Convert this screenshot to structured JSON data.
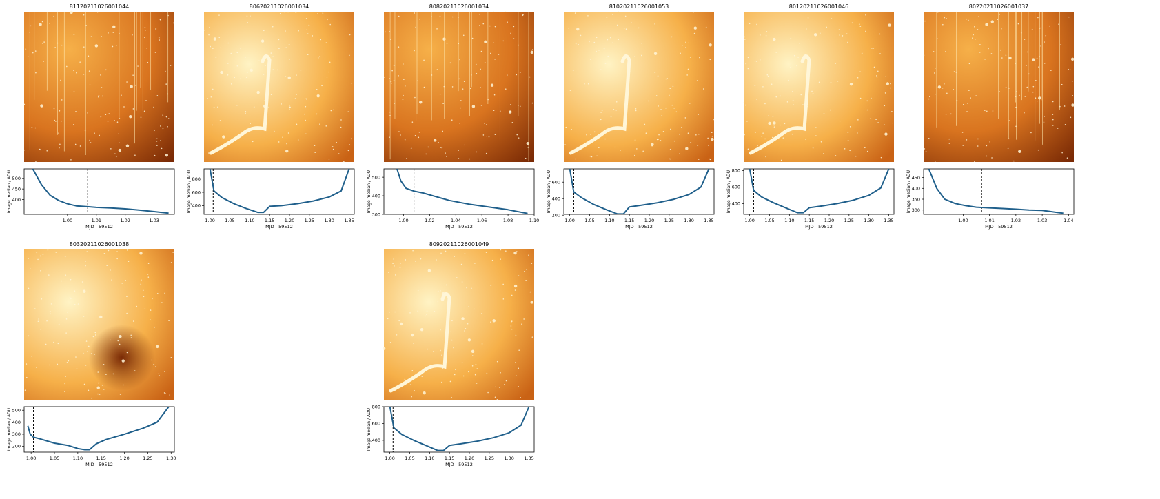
{
  "colors": {
    "line": "#1f5f8b",
    "axis": "#000000",
    "marker": "#000000",
    "image_bright": "#fff3c4",
    "image_mid": "#f6b049",
    "image_dark": "#7a2a05"
  },
  "shared": {
    "xlabel": "MJD - 59512",
    "ylabel": "Image median / ADU"
  },
  "chart_data": [
    {
      "type": "line",
      "title": "81120211026001044",
      "image_style": "stripes",
      "xlim": [
        0.985,
        1.037
      ],
      "ylim": [
        330,
        545
      ],
      "xticks": [
        1.0,
        1.01,
        1.02,
        1.03
      ],
      "xtick_labels": [
        "1.00",
        "1.01",
        "1.02",
        "1.03"
      ],
      "yticks": [
        400,
        450,
        500
      ],
      "ytick_labels": [
        "400",
        "450",
        "500"
      ],
      "marker_x": 1.007,
      "x": [
        0.988,
        0.991,
        0.994,
        0.997,
        1.0,
        1.003,
        1.007,
        1.01,
        1.015,
        1.02,
        1.025,
        1.03,
        1.035
      ],
      "y": [
        545,
        470,
        420,
        395,
        380,
        370,
        366,
        363,
        360,
        356,
        350,
        343,
        336
      ]
    },
    {
      "type": "line",
      "title": "80620211026001034",
      "image_style": "cloud",
      "xlim": [
        0.985,
        1.363
      ],
      "ylim": [
        270,
        950
      ],
      "xticks": [
        1.0,
        1.05,
        1.1,
        1.15,
        1.2,
        1.25,
        1.3,
        1.35
      ],
      "xtick_labels": [
        "1.00",
        "1.05",
        "1.10",
        "1.15",
        "1.20",
        "1.25",
        "1.30",
        "1.35"
      ],
      "yticks": [
        400,
        600,
        800
      ],
      "ytick_labels": [
        "400",
        "600",
        "800"
      ],
      "marker_x": 1.008,
      "x": [
        1.0,
        1.01,
        1.03,
        1.06,
        1.09,
        1.12,
        1.135,
        1.15,
        1.18,
        1.22,
        1.26,
        1.3,
        1.33,
        1.35
      ],
      "y": [
        950,
        620,
        520,
        430,
        360,
        300,
        300,
        390,
        400,
        430,
        470,
        530,
        620,
        950
      ]
    },
    {
      "type": "line",
      "title": "80820211026001034",
      "image_style": "stripes",
      "xlim": [
        0.985,
        1.1
      ],
      "ylim": [
        300,
        545
      ],
      "xticks": [
        1.0,
        1.02,
        1.04,
        1.06,
        1.08,
        1.1
      ],
      "xtick_labels": [
        "1.00",
        "1.02",
        "1.04",
        "1.06",
        "1.08",
        "1.10"
      ],
      "yticks": [
        300,
        400,
        500
      ],
      "ytick_labels": [
        "300",
        "400",
        "500"
      ],
      "marker_x": 1.008,
      "x": [
        0.995,
        0.998,
        1.002,
        1.008,
        1.015,
        1.025,
        1.035,
        1.05,
        1.065,
        1.08,
        1.095
      ],
      "y": [
        545,
        480,
        440,
        425,
        415,
        395,
        375,
        355,
        340,
        325,
        305
      ]
    },
    {
      "type": "line",
      "title": "81020211026001053",
      "image_style": "cloud",
      "xlim": [
        0.985,
        1.363
      ],
      "ylim": [
        210,
        760
      ],
      "xticks": [
        1.0,
        1.05,
        1.1,
        1.15,
        1.2,
        1.25,
        1.3,
        1.35
      ],
      "xtick_labels": [
        "1.00",
        "1.05",
        "1.10",
        "1.15",
        "1.20",
        "1.25",
        "1.30",
        "1.35"
      ],
      "yticks": [
        200,
        400,
        600
      ],
      "ytick_labels": [
        "200",
        "400",
        "600"
      ],
      "marker_x": 1.01,
      "x": [
        1.0,
        1.01,
        1.03,
        1.06,
        1.09,
        1.12,
        1.135,
        1.15,
        1.18,
        1.22,
        1.26,
        1.3,
        1.33,
        1.35
      ],
      "y": [
        760,
        480,
        410,
        330,
        270,
        215,
        215,
        300,
        320,
        350,
        390,
        450,
        540,
        760
      ]
    },
    {
      "type": "line",
      "title": "80120211026001046",
      "image_style": "cloud",
      "xlim": [
        0.985,
        1.363
      ],
      "ylim": [
        270,
        820
      ],
      "xticks": [
        1.0,
        1.05,
        1.1,
        1.15,
        1.2,
        1.25,
        1.3,
        1.35
      ],
      "xtick_labels": [
        "1.00",
        "1.05",
        "1.10",
        "1.15",
        "1.20",
        "1.25",
        "1.30",
        "1.35"
      ],
      "yticks": [
        400,
        600,
        800
      ],
      "ytick_labels": [
        "400",
        "600",
        "800"
      ],
      "marker_x": 1.01,
      "x": [
        1.0,
        1.01,
        1.03,
        1.06,
        1.09,
        1.12,
        1.135,
        1.15,
        1.18,
        1.22,
        1.26,
        1.3,
        1.33,
        1.35
      ],
      "y": [
        820,
        560,
        480,
        410,
        350,
        290,
        290,
        350,
        370,
        400,
        440,
        500,
        590,
        820
      ]
    },
    {
      "type": "line",
      "title": "80220211026001037",
      "image_style": "stripes",
      "xlim": [
        0.985,
        1.042
      ],
      "ylim": [
        280,
        490
      ],
      "xticks": [
        1.0,
        1.01,
        1.02,
        1.03,
        1.04
      ],
      "xtick_labels": [
        "1.00",
        "1.01",
        "1.02",
        "1.03",
        "1.04"
      ],
      "yticks": [
        300,
        350,
        400,
        450
      ],
      "ytick_labels": [
        "300",
        "350",
        "400",
        "450"
      ],
      "marker_x": 1.007,
      "x": [
        0.987,
        0.99,
        0.993,
        0.997,
        1.001,
        1.005,
        1.01,
        1.015,
        1.02,
        1.025,
        1.03,
        1.035,
        1.038
      ],
      "y": [
        490,
        400,
        350,
        330,
        320,
        313,
        310,
        307,
        304,
        300,
        298,
        290,
        285
      ]
    },
    {
      "type": "line",
      "title": "80320211026001038",
      "image_style": "dark",
      "xlim": [
        0.985,
        1.307
      ],
      "ylim": [
        150,
        530
      ],
      "xticks": [
        1.0,
        1.05,
        1.1,
        1.15,
        1.2,
        1.25,
        1.3
      ],
      "xtick_labels": [
        "1.00",
        "1.05",
        "1.10",
        "1.15",
        "1.20",
        "1.25",
        "1.30"
      ],
      "yticks": [
        200,
        300,
        400,
        500
      ],
      "ytick_labels": [
        "200",
        "300",
        "400",
        "500"
      ],
      "marker_x": 1.005,
      "x": [
        0.993,
        0.998,
        1.005,
        1.02,
        1.05,
        1.08,
        1.1,
        1.115,
        1.125,
        1.14,
        1.16,
        1.2,
        1.24,
        1.27,
        1.295
      ],
      "y": [
        370,
        300,
        275,
        260,
        225,
        205,
        180,
        170,
        170,
        220,
        255,
        300,
        350,
        400,
        530
      ]
    },
    {
      "type": "line",
      "title": "80920211026001049",
      "image_style": "cloud",
      "xlim": [
        0.985,
        1.363
      ],
      "ylim": [
        260,
        800
      ],
      "xticks": [
        1.0,
        1.05,
        1.1,
        1.15,
        1.2,
        1.25,
        1.3,
        1.35
      ],
      "xtick_labels": [
        "1.00",
        "1.05",
        "1.10",
        "1.15",
        "1.20",
        "1.25",
        "1.30",
        "1.35"
      ],
      "yticks": [
        400,
        600,
        800
      ],
      "ytick_labels": [
        "400",
        "600",
        "800"
      ],
      "marker_x": 1.008,
      "x": [
        1.0,
        1.01,
        1.03,
        1.06,
        1.09,
        1.12,
        1.135,
        1.15,
        1.18,
        1.22,
        1.26,
        1.3,
        1.33,
        1.35
      ],
      "y": [
        800,
        550,
        470,
        400,
        340,
        280,
        280,
        340,
        360,
        390,
        430,
        490,
        580,
        800
      ]
    }
  ]
}
